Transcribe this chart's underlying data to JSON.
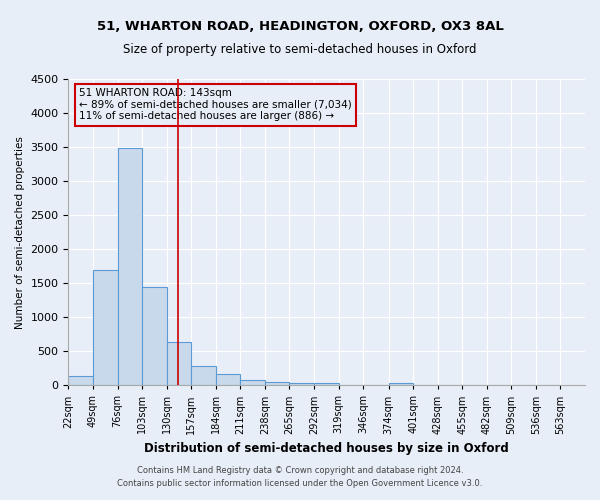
{
  "title": "51, WHARTON ROAD, HEADINGTON, OXFORD, OX3 8AL",
  "subtitle": "Size of property relative to semi-detached houses in Oxford",
  "xlabel": "Distribution of semi-detached houses by size in Oxford",
  "ylabel": "Number of semi-detached properties",
  "footnote1": "Contains HM Land Registry data © Crown copyright and database right 2024.",
  "footnote2": "Contains public sector information licensed under the Open Government Licence v3.0.",
  "bin_edges": [
    22,
    49,
    76,
    103,
    130,
    157,
    184,
    211,
    238,
    265,
    292,
    319,
    346,
    374,
    401,
    428,
    455,
    482,
    509,
    536,
    563
  ],
  "bar_heights": [
    130,
    1700,
    3490,
    1450,
    630,
    280,
    160,
    80,
    55,
    40,
    30,
    10,
    5,
    40,
    0,
    0,
    0,
    0,
    0,
    0
  ],
  "property_size": 143,
  "ylim": [
    0,
    4500
  ],
  "yticks": [
    0,
    500,
    1000,
    1500,
    2000,
    2500,
    3000,
    3500,
    4000,
    4500
  ],
  "bar_color": "#c9d9ec",
  "bar_edge_color": "#5a9bd5",
  "vline_color": "#cc0000",
  "annotation_text_line1": "51 WHARTON ROAD: 143sqm",
  "annotation_text_line2": "← 89% of semi-detached houses are smaller (7,034)",
  "annotation_text_line3": "11% of semi-detached houses are larger (886) →",
  "annotation_box_color": "#cc0000",
  "background_color": "#e8eef7"
}
